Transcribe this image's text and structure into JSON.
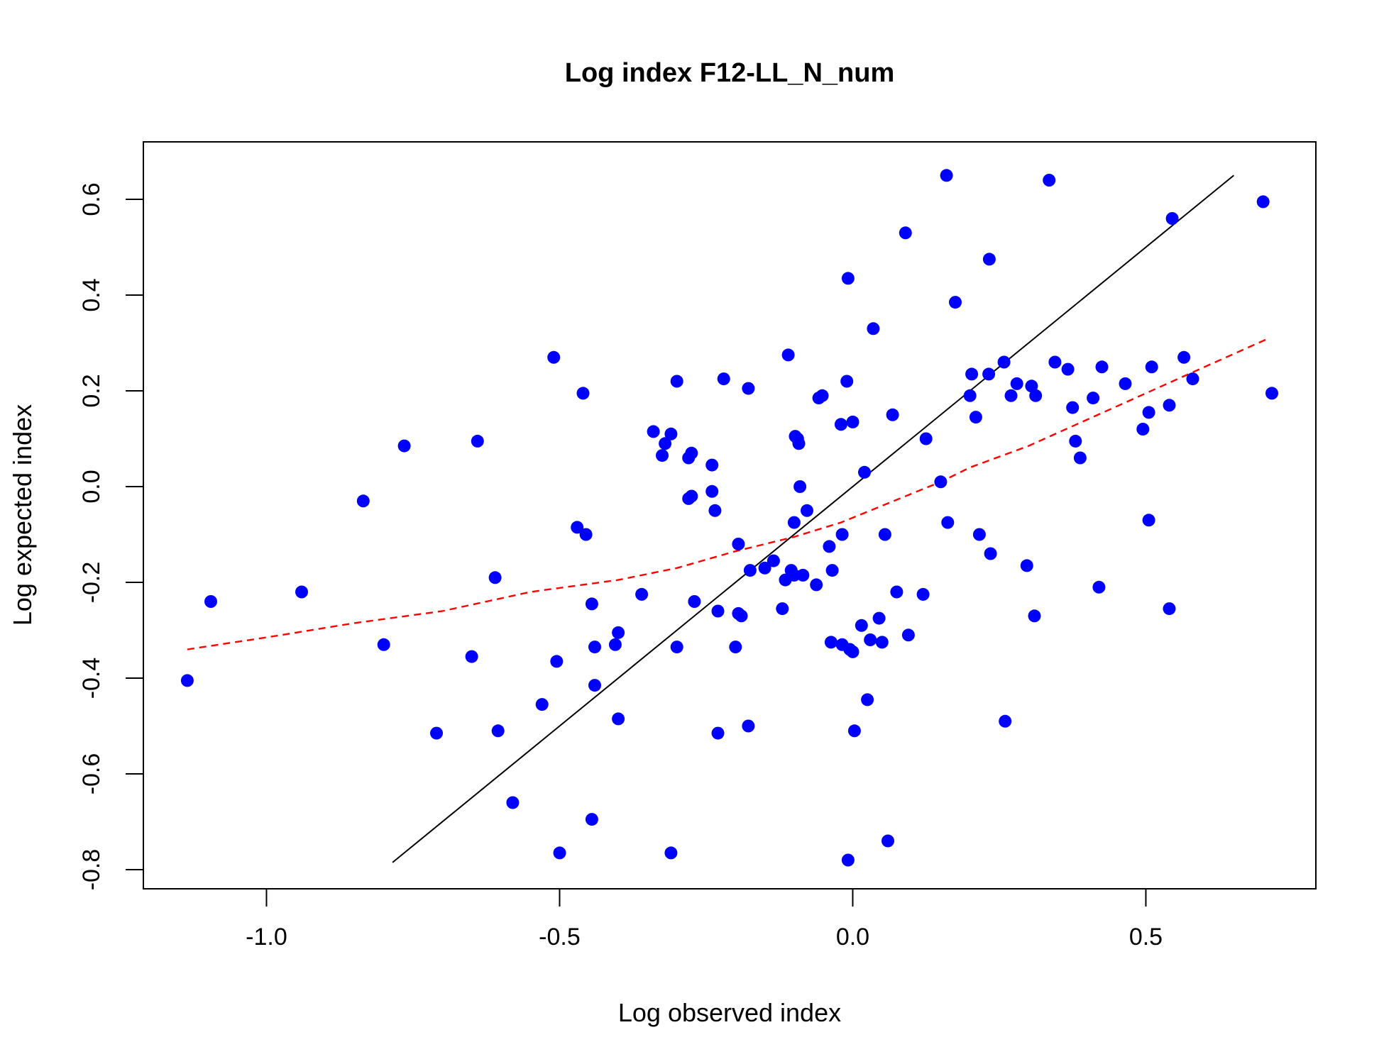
{
  "chart_data": {
    "type": "scatter",
    "title": "Log index F12-LL_N_num",
    "xlabel": "Log observed index",
    "ylabel": "Log expected index",
    "xlim": [
      -1.21,
      0.79
    ],
    "ylim": [
      -0.84,
      0.72
    ],
    "x_ticks": [
      -1.0,
      -0.5,
      0.0,
      0.5
    ],
    "x_tick_labels": [
      "-1.0",
      "-0.5",
      "0.0",
      "0.5"
    ],
    "y_ticks": [
      -0.8,
      -0.6,
      -0.4,
      -0.2,
      0.0,
      0.2,
      0.4,
      0.6
    ],
    "y_tick_labels": [
      "-0.8",
      "-0.6",
      "-0.4",
      "-0.2",
      "0.0",
      "0.2",
      "0.4",
      "0.6"
    ],
    "grid": false,
    "colors": {
      "points": "#0000ff",
      "identity_line": "#000000",
      "smooth_line": "#ff0000",
      "frame": "#000000"
    },
    "points": [
      [
        -1.135,
        -0.405
      ],
      [
        -1.095,
        -0.24
      ],
      [
        -0.94,
        -0.22
      ],
      [
        -0.835,
        -0.03
      ],
      [
        -0.8,
        -0.33
      ],
      [
        -0.765,
        0.085
      ],
      [
        -0.71,
        -0.515
      ],
      [
        -0.65,
        -0.355
      ],
      [
        -0.64,
        0.095
      ],
      [
        -0.61,
        -0.19
      ],
      [
        -0.605,
        -0.51
      ],
      [
        -0.58,
        -0.66
      ],
      [
        -0.53,
        -0.455
      ],
      [
        -0.51,
        0.27
      ],
      [
        -0.505,
        -0.365
      ],
      [
        -0.5,
        -0.765
      ],
      [
        -0.47,
        -0.085
      ],
      [
        -0.46,
        0.195
      ],
      [
        -0.455,
        -0.1
      ],
      [
        -0.445,
        -0.245
      ],
      [
        -0.445,
        -0.695
      ],
      [
        -0.44,
        -0.415
      ],
      [
        -0.44,
        -0.335
      ],
      [
        -0.405,
        -0.33
      ],
      [
        -0.4,
        -0.305
      ],
      [
        -0.4,
        -0.485
      ],
      [
        -0.36,
        -0.225
      ],
      [
        -0.34,
        0.115
      ],
      [
        -0.325,
        0.065
      ],
      [
        -0.32,
        0.09
      ],
      [
        -0.31,
        0.11
      ],
      [
        -0.31,
        -0.765
      ],
      [
        -0.3,
        0.22
      ],
      [
        -0.3,
        -0.335
      ],
      [
        -0.28,
        0.06
      ],
      [
        -0.28,
        -0.025
      ],
      [
        -0.275,
        0.07
      ],
      [
        -0.275,
        -0.02
      ],
      [
        -0.27,
        -0.24
      ],
      [
        -0.24,
        0.045
      ],
      [
        -0.24,
        -0.01
      ],
      [
        -0.235,
        -0.05
      ],
      [
        -0.23,
        -0.26
      ],
      [
        -0.23,
        -0.515
      ],
      [
        -0.22,
        0.225
      ],
      [
        -0.2,
        -0.335
      ],
      [
        -0.195,
        -0.12
      ],
      [
        -0.195,
        -0.265
      ],
      [
        -0.19,
        -0.27
      ],
      [
        -0.178,
        0.205
      ],
      [
        -0.178,
        -0.5
      ],
      [
        -0.175,
        -0.175
      ],
      [
        -0.15,
        -0.17
      ],
      [
        -0.135,
        -0.155
      ],
      [
        -0.12,
        -0.255
      ],
      [
        -0.115,
        -0.195
      ],
      [
        -0.11,
        0.275
      ],
      [
        -0.105,
        -0.175
      ],
      [
        -0.1,
        -0.075
      ],
      [
        -0.1,
        -0.185
      ],
      [
        -0.098,
        0.105
      ],
      [
        -0.094,
        0.1
      ],
      [
        -0.092,
        0.09
      ],
      [
        -0.09,
        0.0
      ],
      [
        -0.085,
        -0.185
      ],
      [
        -0.078,
        -0.05
      ],
      [
        -0.062,
        -0.205
      ],
      [
        -0.058,
        0.185
      ],
      [
        -0.052,
        0.19
      ],
      [
        -0.04,
        -0.125
      ],
      [
        -0.037,
        -0.325
      ],
      [
        -0.035,
        -0.175
      ],
      [
        -0.02,
        0.13
      ],
      [
        -0.018,
        -0.1
      ],
      [
        -0.018,
        -0.33
      ],
      [
        -0.01,
        0.22
      ],
      [
        -0.008,
        0.435
      ],
      [
        -0.008,
        -0.78
      ],
      [
        -0.005,
        -0.34
      ],
      [
        0.0,
        0.135
      ],
      [
        0.0,
        -0.345
      ],
      [
        0.003,
        -0.51
      ],
      [
        0.015,
        -0.29
      ],
      [
        0.02,
        0.03
      ],
      [
        0.025,
        -0.445
      ],
      [
        0.03,
        -0.32
      ],
      [
        0.035,
        0.33
      ],
      [
        0.045,
        -0.275
      ],
      [
        0.05,
        -0.325
      ],
      [
        0.055,
        -0.1
      ],
      [
        0.06,
        -0.74
      ],
      [
        0.068,
        0.15
      ],
      [
        0.075,
        -0.22
      ],
      [
        0.09,
        0.53
      ],
      [
        0.095,
        -0.31
      ],
      [
        0.12,
        -0.225
      ],
      [
        0.125,
        0.1
      ],
      [
        0.15,
        0.01
      ],
      [
        0.16,
        0.65
      ],
      [
        0.162,
        -0.075
      ],
      [
        0.175,
        0.385
      ],
      [
        0.2,
        0.19
      ],
      [
        0.203,
        0.235
      ],
      [
        0.21,
        0.145
      ],
      [
        0.216,
        -0.1
      ],
      [
        0.232,
        0.235
      ],
      [
        0.233,
        0.475
      ],
      [
        0.235,
        -0.14
      ],
      [
        0.258,
        0.26
      ],
      [
        0.26,
        -0.49
      ],
      [
        0.27,
        0.19
      ],
      [
        0.28,
        0.215
      ],
      [
        0.297,
        -0.165
      ],
      [
        0.305,
        0.21
      ],
      [
        0.31,
        -0.27
      ],
      [
        0.312,
        0.19
      ],
      [
        0.335,
        0.64
      ],
      [
        0.345,
        0.26
      ],
      [
        0.367,
        0.245
      ],
      [
        0.375,
        0.165
      ],
      [
        0.38,
        0.095
      ],
      [
        0.388,
        0.06
      ],
      [
        0.41,
        0.185
      ],
      [
        0.42,
        -0.21
      ],
      [
        0.425,
        0.25
      ],
      [
        0.465,
        0.215
      ],
      [
        0.495,
        0.12
      ],
      [
        0.505,
        0.155
      ],
      [
        0.505,
        -0.07
      ],
      [
        0.51,
        0.25
      ],
      [
        0.54,
        0.17
      ],
      [
        0.54,
        -0.255
      ],
      [
        0.545,
        0.56
      ],
      [
        0.565,
        0.27
      ],
      [
        0.58,
        0.225
      ],
      [
        0.7,
        0.595
      ],
      [
        0.715,
        0.195
      ]
    ],
    "identity_line": [
      [
        -0.785,
        -0.785
      ],
      [
        0.65,
        0.65
      ]
    ],
    "smooth_line": [
      [
        -1.135,
        -0.34
      ],
      [
        -1.0,
        -0.315
      ],
      [
        -0.85,
        -0.285
      ],
      [
        -0.7,
        -0.26
      ],
      [
        -0.55,
        -0.22
      ],
      [
        -0.4,
        -0.195
      ],
      [
        -0.3,
        -0.17
      ],
      [
        -0.2,
        -0.135
      ],
      [
        -0.1,
        -0.105
      ],
      [
        -0.02,
        -0.075
      ],
      [
        0.05,
        -0.04
      ],
      [
        0.1,
        -0.015
      ],
      [
        0.15,
        0.01
      ],
      [
        0.2,
        0.04
      ],
      [
        0.3,
        0.085
      ],
      [
        0.4,
        0.14
      ],
      [
        0.5,
        0.195
      ],
      [
        0.6,
        0.25
      ],
      [
        0.71,
        0.31
      ]
    ]
  }
}
